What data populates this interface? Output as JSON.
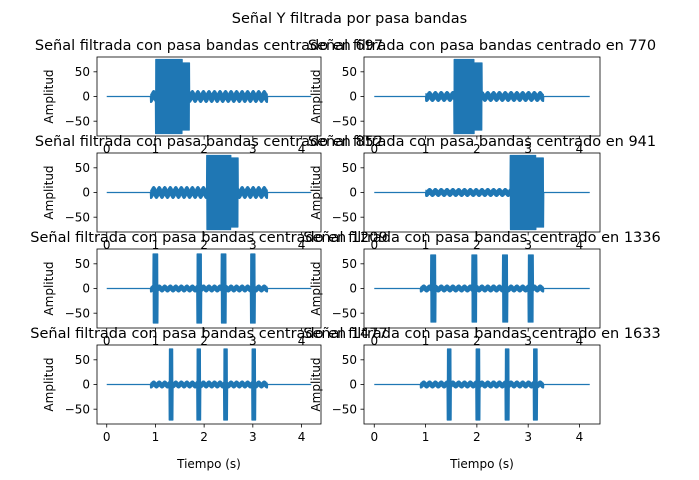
{
  "figure": {
    "suptitle": "Señal Y filtrada por pasa bandas"
  },
  "colors": {
    "series": "#1f77b4",
    "axes": "#000000",
    "background": "#ffffff"
  },
  "chart_data": [
    {
      "type": "line",
      "title": "Señal filtrada con pasa bandas centrado en 697",
      "xlabel": "",
      "ylabel": "Amplitud",
      "xlim": [
        -0.2,
        4.4
      ],
      "ylim": [
        -80,
        80
      ],
      "xticks": [
        0,
        1,
        2,
        3,
        4
      ],
      "yticks": [
        -50,
        0,
        50
      ],
      "grid": false,
      "bursts": [
        [
          1.0,
          1.55,
          75
        ],
        [
          1.55,
          1.7,
          68
        ]
      ],
      "noise": [
        [
          0.9,
          3.3,
          12
        ]
      ]
    },
    {
      "type": "line",
      "title": "Señal filtrada con pasa bandas centrado en 770",
      "xlabel": "",
      "ylabel": "Amplitud",
      "xlim": [
        -0.2,
        4.4
      ],
      "ylim": [
        -80,
        80
      ],
      "xticks": [
        0,
        1,
        2,
        3,
        4
      ],
      "yticks": [
        -50,
        0,
        50
      ],
      "grid": false,
      "bursts": [
        [
          1.55,
          1.95,
          75
        ],
        [
          1.95,
          2.1,
          68
        ]
      ],
      "noise": [
        [
          1.0,
          3.3,
          10
        ]
      ]
    },
    {
      "type": "line",
      "title": "Señal filtrada con pasa bandas centrado en 852",
      "xlabel": "",
      "ylabel": "Amplitud",
      "xlim": [
        -0.2,
        4.4
      ],
      "ylim": [
        -80,
        80
      ],
      "xticks": [
        0,
        1,
        2,
        3,
        4
      ],
      "yticks": [
        -50,
        0,
        50
      ],
      "grid": false,
      "bursts": [
        [
          2.05,
          2.55,
          75
        ],
        [
          2.55,
          2.7,
          70
        ]
      ],
      "noise": [
        [
          0.9,
          3.3,
          12
        ]
      ]
    },
    {
      "type": "line",
      "title": "Señal filtrada con pasa bandas centrado en 941",
      "xlabel": "",
      "ylabel": "Amplitud",
      "xlim": [
        -0.2,
        4.4
      ],
      "ylim": [
        -80,
        80
      ],
      "xticks": [
        0,
        1,
        2,
        3,
        4
      ],
      "yticks": [
        -50,
        0,
        50
      ],
      "grid": false,
      "bursts": [
        [
          2.65,
          3.15,
          75
        ],
        [
          3.15,
          3.3,
          70
        ]
      ],
      "noise": [
        [
          1.0,
          3.3,
          8
        ]
      ]
    },
    {
      "type": "line",
      "title": "Señal filtrada con pasa bandas centrado en 1209",
      "xlabel": "",
      "ylabel": "Amplitud",
      "xlim": [
        -0.2,
        4.4
      ],
      "ylim": [
        -80,
        80
      ],
      "xticks": [
        0,
        1,
        2,
        3,
        4
      ],
      "yticks": [
        -50,
        0,
        50
      ],
      "grid": false,
      "bursts": [
        [
          0.95,
          1.05,
          70
        ],
        [
          1.85,
          1.95,
          70
        ],
        [
          2.35,
          2.45,
          70
        ],
        [
          2.95,
          3.05,
          70
        ]
      ],
      "noise": [
        [
          0.9,
          3.3,
          7
        ]
      ]
    },
    {
      "type": "line",
      "title": "Señal filtrada con pasa bandas centrado en 1336",
      "xlabel": "",
      "ylabel": "Amplitud",
      "xlim": [
        -0.2,
        4.4
      ],
      "ylim": [
        -80,
        80
      ],
      "xticks": [
        0,
        1,
        2,
        3,
        4
      ],
      "yticks": [
        -50,
        0,
        50
      ],
      "grid": false,
      "bursts": [
        [
          1.1,
          1.2,
          68
        ],
        [
          1.9,
          2.0,
          68
        ],
        [
          2.5,
          2.6,
          68
        ],
        [
          3.0,
          3.1,
          68
        ]
      ],
      "noise": [
        [
          0.9,
          3.3,
          7
        ]
      ]
    },
    {
      "type": "line",
      "title": "Señal filtrada con pasa bandas centrado en 1477",
      "xlabel": "Tiempo (s)",
      "ylabel": "Amplitud",
      "xlim": [
        -0.2,
        4.4
      ],
      "ylim": [
        -80,
        80
      ],
      "xticks": [
        0,
        1,
        2,
        3,
        4
      ],
      "yticks": [
        -50,
        0,
        50
      ],
      "grid": false,
      "bursts": [
        [
          1.28,
          1.36,
          72
        ],
        [
          1.85,
          1.93,
          72
        ],
        [
          2.4,
          2.48,
          72
        ],
        [
          2.98,
          3.06,
          72
        ]
      ],
      "noise": [
        [
          0.9,
          3.3,
          7
        ]
      ]
    },
    {
      "type": "line",
      "title": "Señal filtrada con pasa bandas centrado en 1633",
      "xlabel": "Tiempo (s)",
      "ylabel": "Amplitud",
      "xlim": [
        -0.2,
        4.4
      ],
      "ylim": [
        -80,
        80
      ],
      "xticks": [
        0,
        1,
        2,
        3,
        4
      ],
      "yticks": [
        -50,
        0,
        50
      ],
      "grid": false,
      "bursts": [
        [
          1.42,
          1.5,
          72
        ],
        [
          1.98,
          2.06,
          72
        ],
        [
          2.55,
          2.63,
          72
        ],
        [
          3.1,
          3.18,
          72
        ]
      ],
      "noise": [
        [
          0.9,
          3.3,
          7
        ]
      ]
    }
  ]
}
